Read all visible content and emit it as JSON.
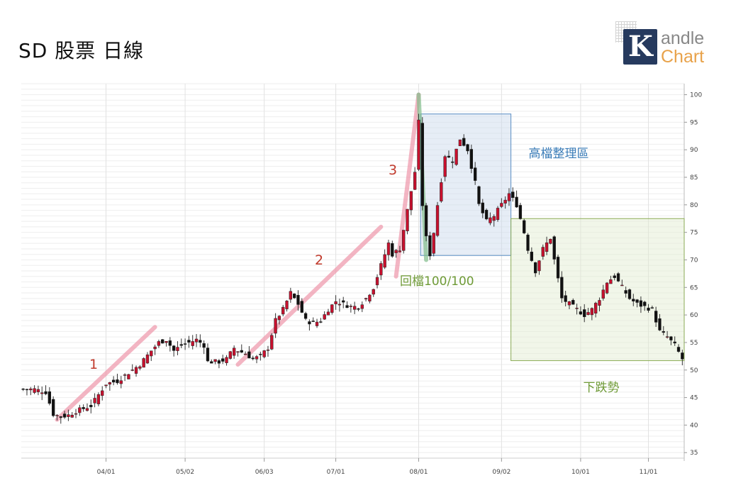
{
  "title": "SD 股票 日線",
  "logo": {
    "mark": "K",
    "line1": "andle",
    "line2": "Chart"
  },
  "chart_data": {
    "type": "candlestick",
    "ylim": [
      34,
      102
    ],
    "y_ticks": [
      35,
      40,
      45,
      50,
      55,
      60,
      65,
      70,
      75,
      80,
      85,
      90,
      95,
      100
    ],
    "grid": "horizontal minor + vertical at month starts",
    "x_ticks": [
      {
        "label": "04/01",
        "index": 22
      },
      {
        "label": "05/02",
        "index": 43
      },
      {
        "label": "06/03",
        "index": 64
      },
      {
        "label": "07/01",
        "index": 83
      },
      {
        "label": "08/01",
        "index": 105
      },
      {
        "label": "09/02",
        "index": 127
      },
      {
        "label": "10/01",
        "index": 148
      },
      {
        "label": "11/01",
        "index": 166
      }
    ],
    "num_bars": 176,
    "anchors": [
      [
        0,
        46.5
      ],
      [
        3,
        46.5
      ],
      [
        6,
        46
      ],
      [
        7,
        44
      ],
      [
        8,
        42
      ],
      [
        10,
        41.5
      ],
      [
        12,
        41.8
      ],
      [
        14,
        42.5
      ],
      [
        18,
        43.5
      ],
      [
        20,
        45.5
      ],
      [
        22,
        47.5
      ],
      [
        25,
        48
      ],
      [
        28,
        49.5
      ],
      [
        31,
        51
      ],
      [
        34,
        53.5
      ],
      [
        36,
        55
      ],
      [
        38,
        55.5
      ],
      [
        40,
        53.5
      ],
      [
        42,
        54.5
      ],
      [
        44,
        55
      ],
      [
        46,
        55.5
      ],
      [
        48,
        54.5
      ],
      [
        49,
        51.5
      ],
      [
        52,
        51.5
      ],
      [
        54,
        52
      ],
      [
        56,
        54
      ],
      [
        57,
        53.5
      ],
      [
        59,
        53
      ],
      [
        61,
        52
      ],
      [
        63,
        52.5
      ],
      [
        65,
        54
      ],
      [
        67,
        59
      ],
      [
        69,
        61
      ],
      [
        71,
        64
      ],
      [
        73,
        62
      ],
      [
        75,
        59
      ],
      [
        77,
        58.5
      ],
      [
        79,
        59
      ],
      [
        81,
        61
      ],
      [
        83,
        62.5
      ],
      [
        85,
        62
      ],
      [
        87,
        61.5
      ],
      [
        89,
        61.5
      ],
      [
        91,
        63
      ],
      [
        93,
        65
      ],
      [
        95,
        69
      ],
      [
        97,
        73
      ],
      [
        98,
        71
      ],
      [
        100,
        72
      ],
      [
        102,
        79
      ],
      [
        104,
        86
      ],
      [
        105,
        95
      ],
      [
        106,
        80
      ],
      [
        107,
        74
      ],
      [
        108,
        71
      ],
      [
        109,
        75
      ],
      [
        110,
        80
      ],
      [
        112,
        89
      ],
      [
        114,
        88
      ],
      [
        116,
        92
      ],
      [
        118,
        90
      ],
      [
        120,
        84
      ],
      [
        121,
        80
      ],
      [
        123,
        77
      ],
      [
        125,
        78
      ],
      [
        127,
        80
      ],
      [
        129,
        82
      ],
      [
        131,
        80
      ],
      [
        133,
        75
      ],
      [
        134,
        72
      ],
      [
        136,
        68
      ],
      [
        138,
        72
      ],
      [
        140,
        74
      ],
      [
        141,
        70
      ],
      [
        143,
        63
      ],
      [
        145,
        62
      ],
      [
        147,
        61
      ],
      [
        149,
        60
      ],
      [
        151,
        61
      ],
      [
        153,
        63
      ],
      [
        155,
        66
      ],
      [
        157,
        67
      ],
      [
        159,
        65
      ],
      [
        161,
        63
      ],
      [
        163,
        62
      ],
      [
        165,
        61.5
      ],
      [
        167,
        61
      ],
      [
        169,
        57
      ],
      [
        171,
        56
      ],
      [
        173,
        54.5
      ],
      [
        175,
        52
      ]
    ],
    "highlight_boxes": [
      {
        "label": "高檔整理區",
        "x0": 106,
        "x1": 130,
        "y0": 70.8,
        "y1": 96.5
      },
      {
        "label": "下跌勢",
        "x0": 130,
        "x1": 176,
        "y0": 51.7,
        "y1": 77.5
      }
    ],
    "trend_lines": [
      {
        "label": "1",
        "x0": 9,
        "y0": 41,
        "x1": 35,
        "y1": 57.8
      },
      {
        "label": "2",
        "x0": 57,
        "y0": 51,
        "x1": 95,
        "y1": 76
      },
      {
        "label": "3",
        "x0": 99,
        "y0": 67,
        "x1": 105,
        "y1": 100
      }
    ],
    "retrace_line": {
      "label": "回檔100/100",
      "x0": 105,
      "y0": 100,
      "x1": 107,
      "y1": 70
    }
  }
}
